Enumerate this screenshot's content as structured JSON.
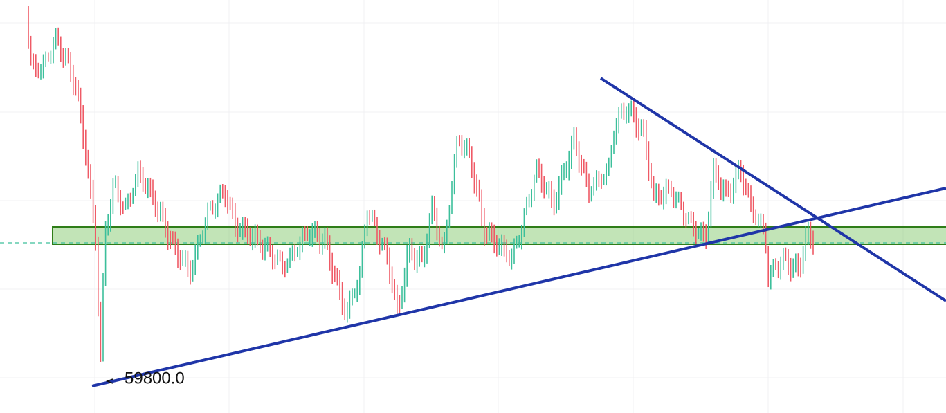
{
  "low_label": {
    "text": "59800.0"
  }
}
